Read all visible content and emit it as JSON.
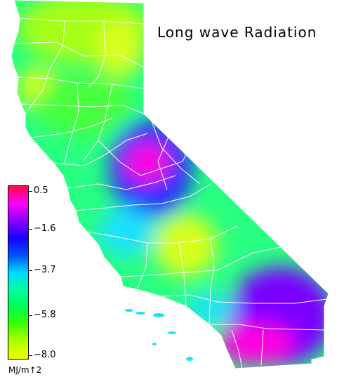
{
  "title": "Long wave Radiation",
  "legend": {
    "ticks": [
      "0.5",
      "−1.6",
      "−3.7",
      "−5.8",
      "−8.0"
    ],
    "unit": "MJ/m↑2",
    "colors": [
      "#ff0a4a",
      "#ff00ff",
      "#8c00ff",
      "#1a00ff",
      "#0050ff",
      "#00d8ff",
      "#00ffa0",
      "#00ff50",
      "#3cff00",
      "#b4ff00",
      "#f0ff00"
    ]
  },
  "palette": {
    "yellow": "#d8ff1e",
    "yellow_green": "#a6ff16",
    "green": "#46ff3c",
    "spring": "#28ff82",
    "cyan": "#1ee0ff",
    "blue": "#1e2dff",
    "violet": "#7a00ff",
    "magenta": "#ff00e0",
    "border": "#ffffff"
  }
}
